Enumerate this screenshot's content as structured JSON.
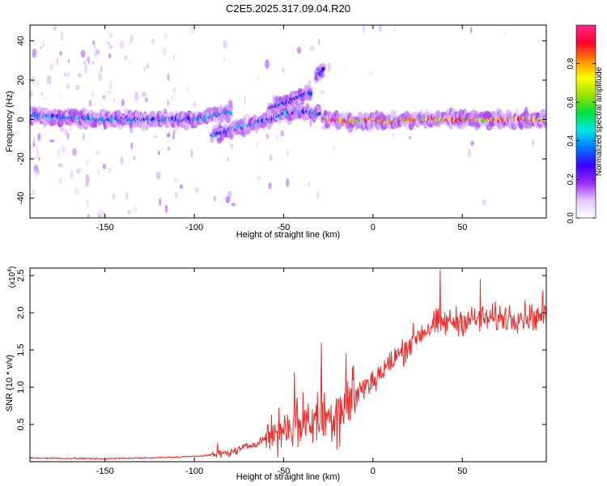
{
  "title": "C2E5.2025.317.09.04.R20",
  "chart_data": [
    {
      "type": "heatmap",
      "xlabel": "Height of straight line (km)",
      "ylabel": "Frequency (Hz)",
      "xlim": [
        -192,
        97
      ],
      "ylim": [
        -50,
        48
      ],
      "xticks": [
        -150,
        -100,
        -50,
        0,
        50
      ],
      "yticks": [
        40,
        20,
        0,
        -20,
        -40
      ],
      "colorbar": {
        "label": "Normalized spectral amplitude",
        "range": [
          0,
          1
        ],
        "ticks": [
          0.0,
          0.2,
          0.4,
          0.6,
          0.8
        ],
        "tick_labels": [
          "0.0",
          "0.2",
          "0.4",
          "0.6",
          "0.8"
        ],
        "colormap": [
          "#ffffff",
          "#e3c6ff",
          "#9c2cf0",
          "#3a00ff",
          "#0076ff",
          "#00e5e5",
          "#00e040",
          "#9ae000",
          "#ffff00",
          "#ff8800",
          "#ff0030",
          "#ff2a8a"
        ]
      },
      "ridges": [
        {
          "x": [
            -192,
            -170,
            -150,
            -130,
            -110,
            -100,
            -90,
            -80
          ],
          "y": [
            2,
            1,
            0,
            0,
            0,
            0,
            2,
            4
          ],
          "peak_amplitude": 0.3
        },
        {
          "x": [
            -90,
            -80,
            -70,
            -60,
            -50,
            -40,
            -30
          ],
          "y": [
            -8,
            -5,
            -3,
            0,
            3,
            4,
            3
          ],
          "peak_amplitude": 0.3
        },
        {
          "x": [
            -58,
            -48,
            -40,
            -35
          ],
          "y": [
            6,
            9,
            12,
            14
          ],
          "peak_amplitude": 0.2
        },
        {
          "x": [
            -32,
            -28
          ],
          "y": [
            22,
            25
          ],
          "peak_amplitude": 0.15
        },
        {
          "x": [
            -28,
            -10,
            0,
            10,
            20,
            40,
            60,
            80,
            97
          ],
          "y": [
            0,
            -1,
            0,
            -1,
            0,
            0,
            0,
            0,
            0
          ],
          "peak_amplitude": 0.95
        }
      ]
    },
    {
      "type": "line",
      "xlabel": "Height of straight line (km)",
      "ylabel": "SNR (10 * v/v)",
      "y_multiplier": "(x10",
      "y_multiplier_exponent": "4",
      "y_multiplier_close": ")",
      "xlim": [
        -192,
        97
      ],
      "ylim": [
        0,
        2.6
      ],
      "xticks": [
        -150,
        -100,
        -50,
        0,
        50
      ],
      "yticks": [
        0.5,
        1.0,
        1.5,
        2.0,
        2.5
      ],
      "ytick_labels": [
        "0.5",
        "1.0",
        "1.5",
        "2.0",
        "2.5"
      ],
      "color": "#e8302e",
      "envelope": {
        "x": [
          -192,
          -150,
          -110,
          -95,
          -80,
          -65,
          -55,
          -45,
          -35,
          -25,
          -15,
          -5,
          5,
          15,
          25,
          35,
          50,
          65,
          80,
          97
        ],
        "y": [
          0.05,
          0.04,
          0.06,
          0.08,
          0.12,
          0.25,
          0.4,
          0.5,
          0.55,
          0.6,
          0.8,
          1.0,
          1.2,
          1.45,
          1.7,
          1.85,
          1.9,
          1.92,
          1.95,
          1.95
        ]
      },
      "spikes": [
        {
          "x": -87,
          "y": 0.25
        },
        {
          "x": -44,
          "y": 1.2
        },
        {
          "x": -29,
          "y": 1.6
        },
        {
          "x": -15,
          "y": 1.45
        },
        {
          "x": 37.5,
          "y": 2.58
        },
        {
          "x": 60,
          "y": 2.45
        },
        {
          "x": 95,
          "y": 2.3
        }
      ]
    }
  ]
}
